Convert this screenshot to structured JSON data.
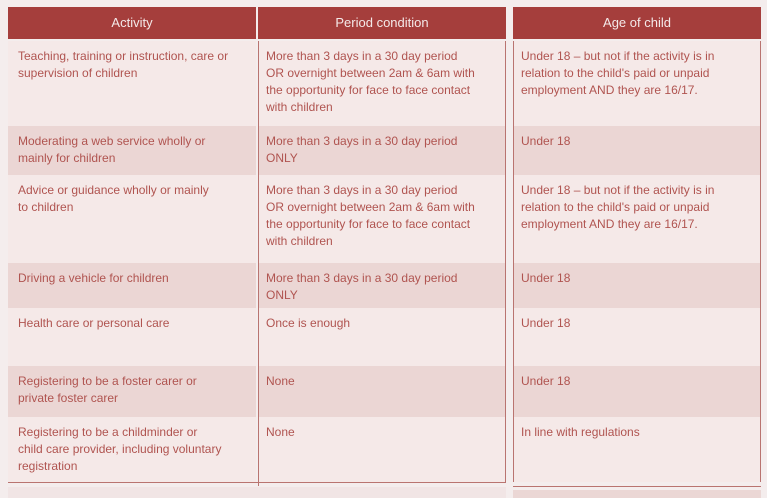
{
  "table": {
    "columns": [
      {
        "label": "Activity"
      },
      {
        "label": "Period condition"
      },
      {
        "label": "Age of child"
      }
    ],
    "rows": [
      {
        "activity": "Teaching, training or instruction, care or\nsupervision of children",
        "period": "More than 3 days in a 30 day period\nOR overnight between 2am & 6am with\nthe opportunity for  face to face contact\nwith children",
        "age": "Under 18 – but not if the activity is in\nrelation to the child's paid or unpaid\nemployment AND they are 16/17."
      },
      {
        "activity": "Moderating a web service wholly or\nmainly for children",
        "period": "More than 3 days in a 30 day period\nONLY",
        "age": "Under 18"
      },
      {
        "activity": "Advice or guidance wholly or mainly\nto children",
        "period": "More than 3 days in a 30 day period\nOR overnight between 2am & 6am with\nthe opportunity for face to face contact\nwith children",
        "age": "Under 18 – but not if the activity is in\nrelation to the child's paid or unpaid\nemployment AND they are 16/17."
      },
      {
        "activity": "Driving a vehicle for children",
        "period": "More than 3 days in a 30 day period\nONLY",
        "age": "Under 18"
      },
      {
        "activity": "Health care or personal care",
        "period": "Once is enough",
        "age": "Under 18"
      },
      {
        "activity": "Registering to be a foster carer or\nprivate foster carer",
        "period": "None",
        "age": "Under 18"
      },
      {
        "activity": "Registering to be a childminder or\nchild care provider, including voluntary\nregistration",
        "period": "None",
        "age": "In line with regulations"
      }
    ]
  },
  "colors": {
    "page_bg": "#f4eded",
    "header_bg": "#a53e3c",
    "header_text": "#f4e9e9",
    "row_light": "#f5e9e8",
    "row_dark": "#ebd6d4",
    "body_text": "#b05450",
    "rule": "#b97470",
    "strip_light": "#f1e5e5",
    "strip_dark": "#ebd7d5"
  }
}
